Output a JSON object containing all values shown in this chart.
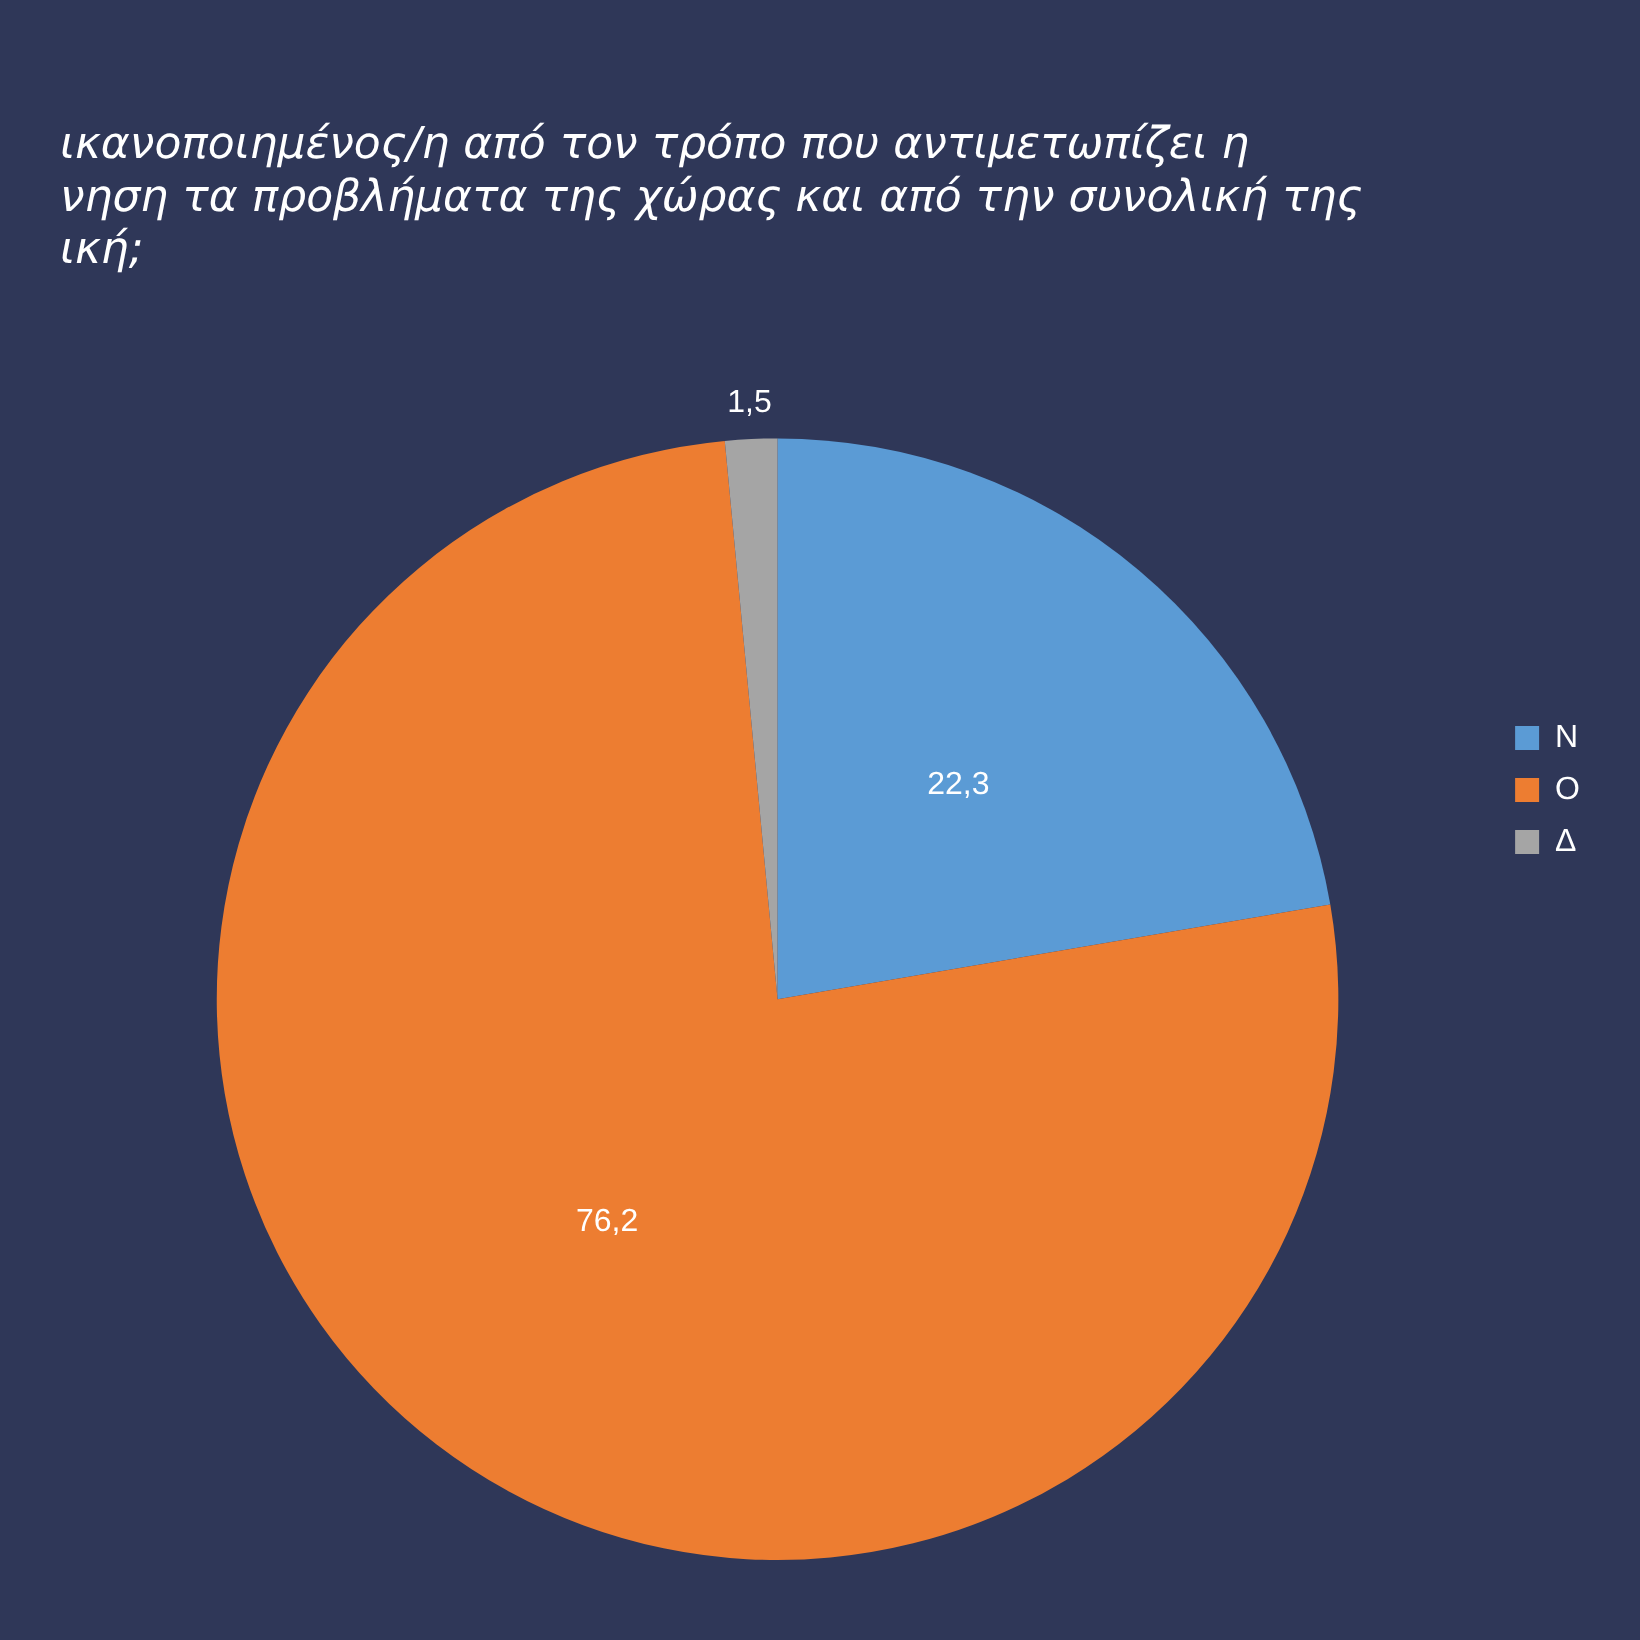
{
  "chart_data": {
    "type": "pie",
    "title": "ικανοποιημένος/η από τον τρόπο που αντιμετωπίζει η\nνηση τα προβλήματα της χώρας και από την συνολική της\nική;",
    "categories": [
      "Ν",
      "Ο",
      "Δ"
    ],
    "values": [
      22.3,
      76.2,
      1.5
    ],
    "colors": [
      "#5b9bd5",
      "#ed7d31",
      "#a5a5a5"
    ],
    "value_labels": [
      "22,3",
      "76,2",
      "1,5"
    ],
    "legend": "right"
  }
}
